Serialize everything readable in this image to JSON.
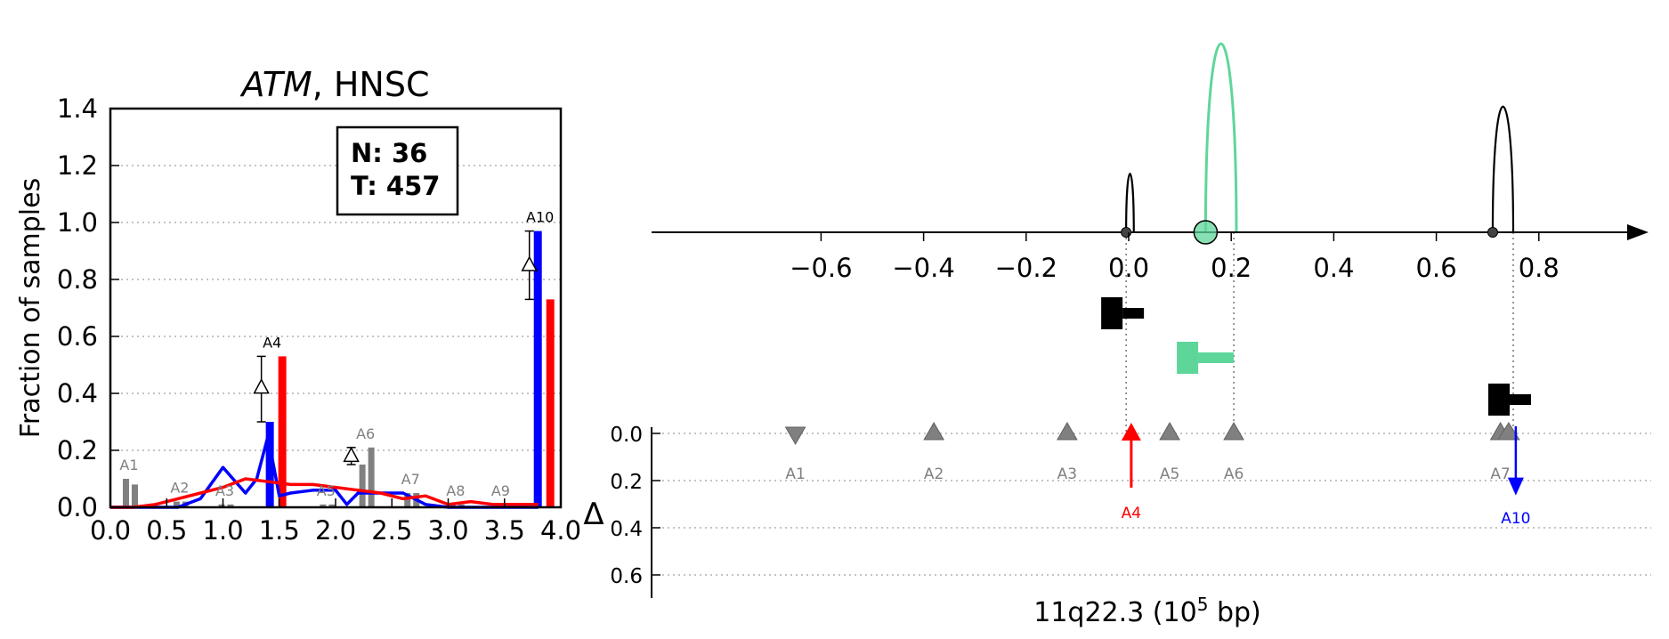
{
  "left_panel": {
    "title_gene": "ATM",
    "title_rest": ", HNSC",
    "ylabel": "Fraction of samples",
    "n_label": "N: 36",
    "t_label": "T: 457",
    "xticks": [
      "0.0",
      "0.5",
      "1.0",
      "1.5",
      "2.0",
      "2.5",
      "3.0",
      "3.5",
      "4.0"
    ],
    "yticks": [
      "0.0",
      "0.2",
      "0.4",
      "0.6",
      "0.8",
      "1.0",
      "1.2",
      "1.4"
    ]
  },
  "right_panel": {
    "xlabel_main": "11q22.3 (10",
    "xlabel_exp": "5",
    "xlabel_end": " bp)",
    "delta_label": "Δ",
    "xticks": [
      "−0.6",
      "−0.4",
      "−0.2",
      "0.0",
      "0.2",
      "0.4",
      "0.6",
      "0.8"
    ],
    "yticks": [
      "0.0",
      "0.2",
      "0.4",
      "0.6"
    ]
  },
  "colors": {
    "normal": "#0000ff",
    "tumor": "#ff0000",
    "gray_bar": "#808080",
    "green": "#5ed69a",
    "black": "#000000"
  },
  "chart_data": [
    {
      "type": "bar",
      "title": "ATM, HNSC",
      "xlabel": "",
      "ylabel": "Fraction of samples",
      "xlim": [
        0.0,
        4.0
      ],
      "ylim": [
        0.0,
        1.4
      ],
      "grid": true,
      "annotation_box": [
        "N: 36",
        "T: 457"
      ],
      "labeled_bars": [
        {
          "label": "A1",
          "x": 0.15,
          "normal": 0.1,
          "tumor": 0.08,
          "highlight": false
        },
        {
          "label": "A2",
          "x": 0.6,
          "normal": 0.02,
          "tumor": 0.02,
          "highlight": false
        },
        {
          "label": "A3",
          "x": 1.0,
          "normal": 0.01,
          "tumor": 0.01,
          "highlight": false
        },
        {
          "label": "A4",
          "x": 1.42,
          "normal": 0.3,
          "tumor": 0.53,
          "delta": 0.42,
          "delta_err": [
            0.3,
            0.53
          ],
          "highlight": true
        },
        {
          "label": "A5",
          "x": 1.9,
          "normal": 0.01,
          "tumor": 0.01,
          "highlight": false
        },
        {
          "label": "A6",
          "x": 2.25,
          "normal": 0.15,
          "tumor": 0.21,
          "delta": 0.18,
          "delta_err": [
            0.15,
            0.21
          ],
          "highlight": false
        },
        {
          "label": "A7",
          "x": 2.65,
          "normal": 0.05,
          "tumor": 0.05,
          "highlight": false
        },
        {
          "label": "A8",
          "x": 3.05,
          "normal": 0.01,
          "tumor": 0.01,
          "highlight": false
        },
        {
          "label": "A9",
          "x": 3.45,
          "normal": 0.01,
          "tumor": 0.01,
          "highlight": false
        },
        {
          "label": "A10",
          "x": 3.8,
          "normal": 0.97,
          "tumor": 0.73,
          "delta": 0.85,
          "delta_err": [
            0.73,
            0.97
          ],
          "highlight": true
        }
      ],
      "series": [
        {
          "name": "",
          "color": "#0000ff",
          "x": [
            0.0,
            0.2,
            0.4,
            0.6,
            0.8,
            1.0,
            1.2,
            1.3,
            1.4,
            1.5,
            1.6,
            1.8,
            2.0,
            2.1,
            2.2,
            2.4,
            2.6,
            2.8,
            3.0,
            3.2,
            3.4,
            3.6,
            3.8
          ],
          "y": [
            0.0,
            0.0,
            0.0,
            0.0,
            0.03,
            0.14,
            0.05,
            0.1,
            0.25,
            0.04,
            0.05,
            0.06,
            0.06,
            0.01,
            0.05,
            0.05,
            0.05,
            0.01,
            0.0,
            0.0,
            0.0,
            0.0,
            0.0
          ]
        },
        {
          "name": "",
          "color": "#ff0000",
          "x": [
            0.0,
            0.2,
            0.4,
            0.6,
            0.8,
            1.0,
            1.2,
            1.4,
            1.6,
            1.8,
            2.0,
            2.2,
            2.4,
            2.6,
            2.8,
            3.0,
            3.2,
            3.4,
            3.6,
            3.8
          ],
          "y": [
            0.0,
            0.0,
            0.01,
            0.03,
            0.05,
            0.07,
            0.1,
            0.09,
            0.08,
            0.08,
            0.07,
            0.06,
            0.05,
            0.03,
            0.04,
            0.01,
            0.02,
            0.01,
            0.01,
            0.01
          ]
        }
      ]
    },
    {
      "type": "scatter",
      "xlabel": "11q22.3 (10^5 bp)",
      "xlim": [
        -0.75,
        0.85
      ],
      "ylim": [
        0.6,
        0.0
      ],
      "ylabel": "Δ",
      "markers": [
        {
          "label": "A1",
          "x": -0.65,
          "delta": 0.0,
          "marker": "down",
          "color": "gray"
        },
        {
          "label": "A2",
          "x": -0.38,
          "delta": 0.0,
          "marker": "up",
          "color": "gray"
        },
        {
          "label": "A3",
          "x": -0.12,
          "delta": 0.0,
          "marker": "up",
          "color": "gray"
        },
        {
          "label": "A4",
          "x": 0.005,
          "delta": 0.23,
          "marker": "arrow-up",
          "color": "red"
        },
        {
          "label": "A5",
          "x": 0.08,
          "delta": 0.0,
          "marker": "up",
          "color": "gray"
        },
        {
          "label": "A6",
          "x": 0.205,
          "delta": 0.0,
          "marker": "up",
          "color": "gray"
        },
        {
          "label": "A7",
          "x": 0.725,
          "delta": 0.0,
          "marker": "up",
          "color": "gray"
        },
        {
          "label": "A10",
          "x": 0.755,
          "delta": 0.24,
          "marker": "arrow-down",
          "color": "blue"
        }
      ],
      "arcs": [
        {
          "x_start": -0.005,
          "x_end": 0.01,
          "height": 0.28,
          "color": "black"
        },
        {
          "x_start": 0.15,
          "x_end": 0.21,
          "height": 0.9,
          "color": "green",
          "circle_x": 0.15
        },
        {
          "x_start": 0.71,
          "x_end": 0.75,
          "height": 0.6,
          "color": "black"
        }
      ],
      "gene_shapes": [
        {
          "x": -0.005,
          "color": "black"
        },
        {
          "x": 0.205,
          "color": "green"
        },
        {
          "x": 0.75,
          "color": "black"
        }
      ]
    }
  ]
}
